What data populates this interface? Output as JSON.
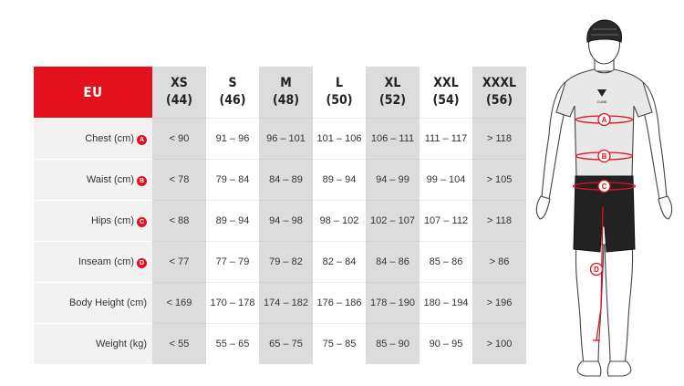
{
  "table": {
    "region_label": "EU",
    "sizes": [
      {
        "name": "XS",
        "eu": "(44)"
      },
      {
        "name": "S",
        "eu": "(46)"
      },
      {
        "name": "M",
        "eu": "(48)"
      },
      {
        "name": "L",
        "eu": "(50)"
      },
      {
        "name": "XL",
        "eu": "(52)"
      },
      {
        "name": "XXL",
        "eu": "(54)"
      },
      {
        "name": "XXXL",
        "eu": "(56)"
      }
    ],
    "rows": [
      {
        "label": "Chest (cm)",
        "marker": "A",
        "values": [
          "< 90",
          "91 – 96",
          "96 – 101",
          "101 – 106",
          "106 – 111",
          "111 – 117",
          "> 118"
        ]
      },
      {
        "label": "Waist (cm)",
        "marker": "B",
        "values": [
          "< 78",
          "79 – 84",
          "84 – 89",
          "89 – 94",
          "94 – 99",
          "99 – 104",
          "> 105"
        ]
      },
      {
        "label": "Hips (cm)",
        "marker": "C",
        "values": [
          "< 88",
          "89 – 94",
          "94 – 98",
          "98 – 102",
          "102 – 107",
          "107 – 112",
          "> 118"
        ]
      },
      {
        "label": "Inseam (cm)",
        "marker": "D",
        "values": [
          "< 77",
          "77 – 79",
          "79 – 82",
          "82 – 84",
          "84 – 86",
          "85 – 86",
          "> 86"
        ]
      },
      {
        "label": "Body Height (cm)",
        "marker": "",
        "values": [
          "< 169",
          "170 – 178",
          "174 – 182",
          "176 – 186",
          "178 – 190",
          "180 – 194",
          "> 196"
        ]
      },
      {
        "label": "Weight (kg)",
        "marker": "",
        "values": [
          "< 55",
          "55 – 65",
          "65 – 75",
          "75 – 85",
          "85 – 90",
          "90 – 95",
          "> 100"
        ]
      }
    ]
  },
  "figure": {
    "markers": [
      "A",
      "B",
      "C",
      "D"
    ],
    "jersey_logo": "CUBE"
  },
  "colors": {
    "accent_red": "#e3101e",
    "column_grey": "#dcdcdc",
    "label_bg": "#f2f2f2"
  }
}
